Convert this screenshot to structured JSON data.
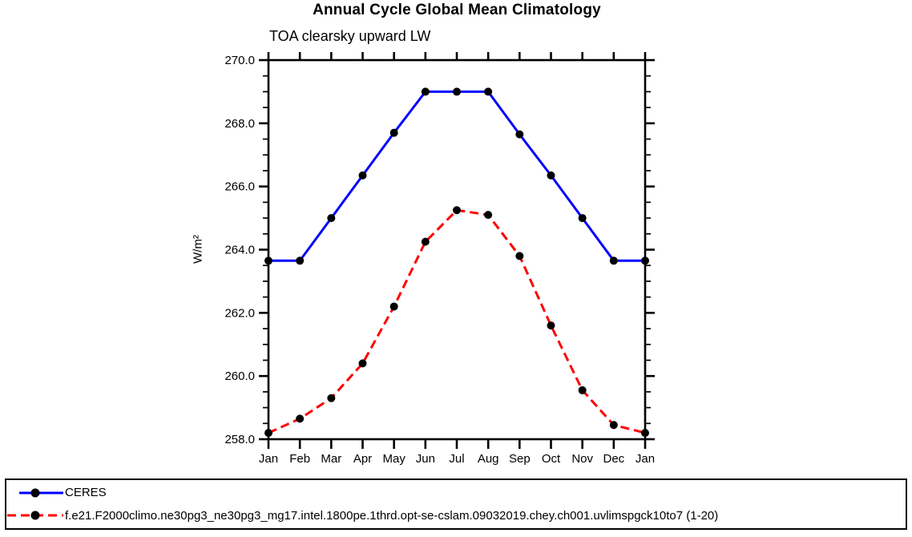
{
  "figure": {
    "background": "#ffffff",
    "text_color": "#000000",
    "axis_color": "#000000"
  },
  "chart_data": {
    "type": "line",
    "title": "Annual Cycle Global Mean Climatology",
    "subtitle": "TOA clearsky upward LW",
    "ylabel": "W/m²",
    "xlabel": "",
    "categories": [
      "Jan",
      "Feb",
      "Mar",
      "Apr",
      "May",
      "Jun",
      "Jul",
      "Aug",
      "Sep",
      "Oct",
      "Nov",
      "Dec",
      "Jan"
    ],
    "series": [
      {
        "name": "CERES",
        "color": "#0000ff",
        "line_style": "solid",
        "marker": "filled-circle",
        "marker_color": "#000000",
        "values": [
          263.65,
          263.65,
          265.0,
          266.35,
          267.7,
          269.0,
          269.0,
          269.0,
          267.65,
          266.35,
          265.0,
          263.65,
          263.65
        ]
      },
      {
        "name": "f.e21.F2000climo.ne30pg3_ne30pg3_mg17.intel.1800pe.1thrd.opt-se-cslam.09032019.chey.ch001.uvlimspgck10to7 (1-20)",
        "color": "#ff0000",
        "line_style": "dashed",
        "marker": "filled-circle",
        "marker_color": "#000000",
        "values": [
          258.2,
          258.65,
          259.3,
          260.4,
          262.2,
          264.25,
          265.25,
          265.1,
          263.8,
          261.6,
          259.55,
          258.45,
          258.2
        ]
      }
    ],
    "ylim": [
      258.0,
      270.0
    ],
    "y_major_step": 2.0,
    "y_minor_step": 0.5,
    "y_tick_labels": [
      "258.0",
      "260.0",
      "262.0",
      "264.0",
      "266.0",
      "268.0",
      "270.0"
    ],
    "grid": false,
    "legend_position": "bottom-box-full-width"
  }
}
